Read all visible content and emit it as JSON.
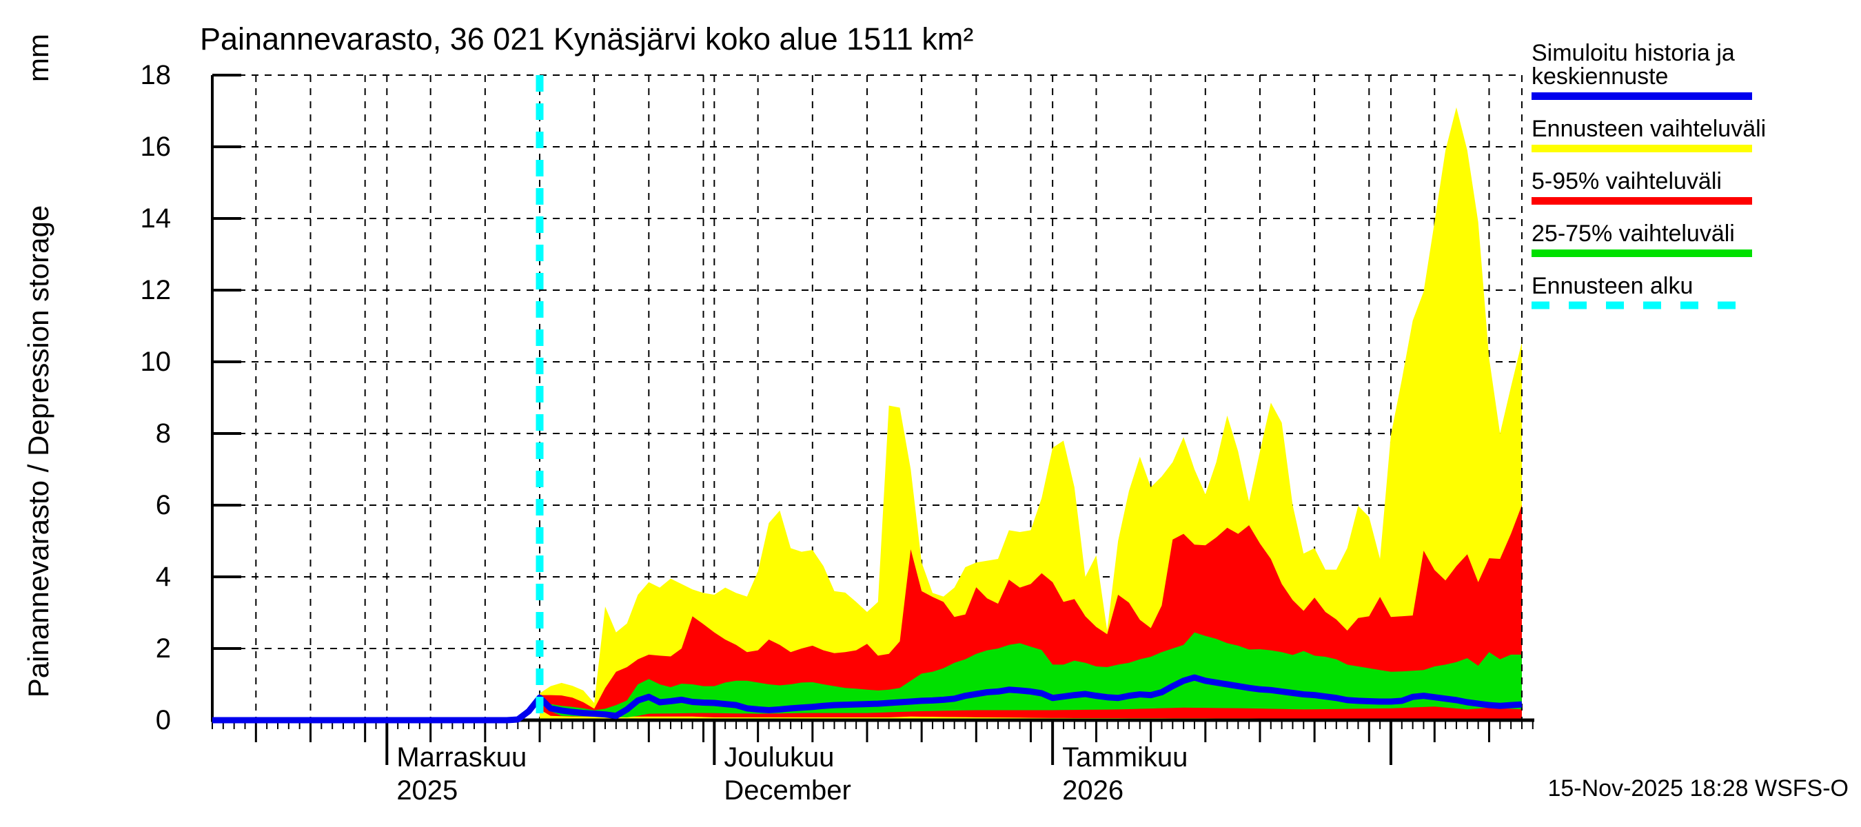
{
  "title": "Painannevarasto, 36 021 Kynäsjärvi koko alue 1511 km²",
  "footer": {
    "timestamp": "15-Nov-2025 18:28 WSFS-O"
  },
  "y_axis": {
    "label": "Painannevarasto / Depression storage",
    "unit": "mm",
    "tick_values": [
      0,
      2,
      4,
      6,
      8,
      10,
      12,
      14,
      16,
      18
    ],
    "ylim": [
      0,
      18
    ]
  },
  "x_axis": {
    "start_date": "2025-10-16",
    "end_date": "2026-02-13",
    "total_days": 120,
    "months": [
      {
        "day": 16,
        "name": "Marraskuu",
        "sub": "2025"
      },
      {
        "day": 46,
        "name": "Joulukuu",
        "sub": "December"
      },
      {
        "day": 77,
        "name": "Tammikuu",
        "sub": "2026"
      },
      {
        "day": 108,
        "name": "",
        "sub": ""
      }
    ],
    "grid_days": [
      4,
      9,
      14,
      16,
      20,
      25,
      30,
      35,
      40,
      45,
      46,
      50,
      55,
      60,
      65,
      70,
      75,
      77,
      81,
      86,
      91,
      96,
      101,
      106,
      108,
      112,
      117,
      120
    ],
    "medium_tick_days": [
      4,
      9,
      14,
      20,
      25,
      30,
      35,
      40,
      45,
      50,
      55,
      60,
      65,
      70,
      75,
      81,
      86,
      91,
      96,
      101,
      106,
      112,
      117
    ]
  },
  "legend": [
    {
      "lines": [
        "Simuloitu historia ja",
        "keskiennuste"
      ],
      "color": "blue",
      "dashed": false
    },
    {
      "lines": [
        "Ennusteen vaihteluväli"
      ],
      "color": "yellow",
      "dashed": false
    },
    {
      "lines": [
        "5-95% vaihteluväli"
      ],
      "color": "red",
      "dashed": false
    },
    {
      "lines": [
        "25-75% vaihteluväli"
      ],
      "color": "green",
      "dashed": false
    },
    {
      "lines": [
        "Ennusteen alku"
      ],
      "color": "cyan",
      "dashed": true
    }
  ],
  "colors": {
    "blue": "#0000ee",
    "yellow": "#ffff00",
    "red": "#ff0000",
    "green": "#00e000",
    "cyan": "#00ffff",
    "axis": "#000000",
    "grid": "#000000"
  },
  "chart_data": {
    "type": "area",
    "title": "Painannevarasto, 36 021 Kynäsjärvi koko alue 1511 km²",
    "xlabel": "",
    "ylabel": "Painannevarasto / Depression storage (mm)",
    "ylim": [
      0,
      18
    ],
    "x_unit": "days since 2025-10-16",
    "forecast_start_day": 30,
    "series": [
      {
        "name": "max (Ennusteen vaihteluväli, top)",
        "color_key": "yellow",
        "start_day": 30,
        "values": [
          0.75,
          0.95,
          1.04,
          0.96,
          0.83,
          0.48,
          3.17,
          2.45,
          2.7,
          3.5,
          3.85,
          3.7,
          3.95,
          3.8,
          3.65,
          3.55,
          3.5,
          3.7,
          3.55,
          3.45,
          4.15,
          5.5,
          5.85,
          4.8,
          4.7,
          4.75,
          4.3,
          3.6,
          3.56,
          3.3,
          3.02,
          3.3,
          8.78,
          8.72,
          7.0,
          4.4,
          3.55,
          3.45,
          3.7,
          4.27,
          4.4,
          4.45,
          4.5,
          5.3,
          5.25,
          5.3,
          6.2,
          7.6,
          7.8,
          6.5,
          4.0,
          4.6,
          2.5,
          5.0,
          6.4,
          7.35,
          6.5,
          6.8,
          7.2,
          7.9,
          7.0,
          6.3,
          7.2,
          8.5,
          7.5,
          6.1,
          7.5,
          8.86,
          8.3,
          6.0,
          4.65,
          4.8,
          4.2,
          4.2,
          4.8,
          5.98,
          5.67,
          4.5,
          7.96,
          9.5,
          11.15,
          11.96,
          13.9,
          15.9,
          17.1,
          15.9,
          13.9,
          10.1,
          8.0,
          9.3,
          10.55
        ]
      },
      {
        "name": "95% (5-95% vaihteluväli, top)",
        "color_key": "red",
        "start_day": 30,
        "values": [
          0.7,
          0.7,
          0.69,
          0.63,
          0.5,
          0.32,
          0.9,
          1.35,
          1.48,
          1.7,
          1.83,
          1.8,
          1.78,
          2.0,
          2.9,
          2.68,
          2.45,
          2.25,
          2.1,
          1.9,
          1.95,
          2.25,
          2.1,
          1.9,
          2.0,
          2.08,
          1.95,
          1.87,
          1.9,
          1.95,
          2.13,
          1.8,
          1.85,
          2.2,
          4.77,
          3.6,
          3.44,
          3.3,
          2.88,
          2.95,
          3.71,
          3.4,
          3.25,
          3.92,
          3.7,
          3.8,
          4.1,
          3.85,
          3.3,
          3.38,
          2.9,
          2.6,
          2.4,
          3.5,
          3.28,
          2.8,
          2.57,
          3.2,
          5.04,
          5.2,
          4.9,
          4.88,
          5.1,
          5.37,
          5.2,
          5.44,
          4.93,
          4.5,
          3.8,
          3.35,
          3.05,
          3.42,
          3.02,
          2.81,
          2.5,
          2.85,
          2.9,
          3.44,
          2.88,
          2.9,
          2.92,
          4.73,
          4.19,
          3.9,
          4.3,
          4.63,
          3.85,
          4.52,
          4.5,
          5.2,
          6.0
        ]
      },
      {
        "name": "75% (25-75% vaihteluväli, top)",
        "color_key": "green",
        "start_day": 30,
        "values": [
          0.66,
          0.45,
          0.4,
          0.37,
          0.33,
          0.28,
          0.32,
          0.42,
          0.55,
          1.0,
          1.15,
          1.0,
          0.92,
          1.02,
          1.0,
          0.95,
          0.95,
          1.05,
          1.1,
          1.1,
          1.05,
          1.0,
          0.97,
          1.0,
          1.05,
          1.06,
          1.0,
          0.95,
          0.9,
          0.88,
          0.85,
          0.83,
          0.85,
          0.9,
          1.1,
          1.3,
          1.35,
          1.45,
          1.6,
          1.7,
          1.85,
          1.95,
          2.0,
          2.1,
          2.15,
          2.05,
          1.96,
          1.55,
          1.55,
          1.66,
          1.6,
          1.5,
          1.48,
          1.55,
          1.6,
          1.7,
          1.77,
          1.9,
          2.0,
          2.1,
          2.45,
          2.35,
          2.27,
          2.15,
          2.08,
          1.97,
          1.98,
          1.95,
          1.9,
          1.82,
          1.93,
          1.8,
          1.77,
          1.7,
          1.55,
          1.5,
          1.45,
          1.4,
          1.35,
          1.36,
          1.38,
          1.4,
          1.5,
          1.55,
          1.62,
          1.73,
          1.52,
          1.9,
          1.7,
          1.83,
          1.83
        ]
      },
      {
        "name": "Simuloitu historia ja keskiennuste",
        "color_key": "blue",
        "start_day": 0,
        "values": [
          0,
          0,
          0,
          0,
          0,
          0,
          0,
          0,
          0,
          0,
          0,
          0,
          0,
          0,
          0,
          0,
          0,
          0,
          0,
          0,
          0,
          0,
          0,
          0,
          0,
          0,
          0,
          0,
          0.02,
          0.25,
          0.63,
          0.33,
          0.27,
          0.23,
          0.2,
          0.18,
          0.16,
          0.12,
          0.3,
          0.55,
          0.65,
          0.5,
          0.53,
          0.57,
          0.51,
          0.49,
          0.48,
          0.45,
          0.42,
          0.33,
          0.3,
          0.28,
          0.3,
          0.33,
          0.35,
          0.37,
          0.4,
          0.42,
          0.43,
          0.44,
          0.45,
          0.46,
          0.48,
          0.5,
          0.52,
          0.54,
          0.55,
          0.57,
          0.6,
          0.68,
          0.73,
          0.78,
          0.8,
          0.85,
          0.83,
          0.8,
          0.75,
          0.62,
          0.66,
          0.7,
          0.73,
          0.68,
          0.64,
          0.62,
          0.68,
          0.72,
          0.7,
          0.78,
          0.95,
          1.1,
          1.19,
          1.1,
          1.05,
          1.0,
          0.95,
          0.9,
          0.86,
          0.84,
          0.8,
          0.76,
          0.72,
          0.7,
          0.66,
          0.62,
          0.56,
          0.54,
          0.53,
          0.52,
          0.52,
          0.54,
          0.65,
          0.68,
          0.64,
          0.6,
          0.56,
          0.5,
          0.46,
          0.42,
          0.4,
          0.42,
          0.44
        ]
      },
      {
        "name": "25% (25-75% vaihteluväli, bottom)",
        "color_key": "green",
        "breakpoints": true,
        "values": [
          [
            30,
            0.55
          ],
          [
            31,
            0.25
          ],
          [
            32,
            0.12
          ],
          [
            35,
            0.1
          ],
          [
            38,
            0.08
          ],
          [
            39,
            0.12
          ],
          [
            40,
            0.18
          ],
          [
            45,
            0.2
          ],
          [
            50,
            0.18
          ],
          [
            55,
            0.2
          ],
          [
            60,
            0.2
          ],
          [
            65,
            0.25
          ],
          [
            70,
            0.28
          ],
          [
            77,
            0.28
          ],
          [
            83,
            0.3
          ],
          [
            89,
            0.35
          ],
          [
            95,
            0.33
          ],
          [
            100,
            0.3
          ],
          [
            108,
            0.33
          ],
          [
            112,
            0.38
          ],
          [
            115,
            0.3
          ],
          [
            117,
            0.35
          ],
          [
            120,
            0.3
          ]
        ]
      },
      {
        "name": "5% (5-95% vaihteluväli, bottom)",
        "color_key": "red",
        "breakpoints": true,
        "values": [
          [
            30,
            0.3
          ],
          [
            31,
            0.12
          ],
          [
            33,
            0.1
          ],
          [
            44,
            0.1
          ],
          [
            46,
            0.08
          ],
          [
            62,
            0.08
          ],
          [
            64,
            0.1
          ],
          [
            70,
            0.08
          ],
          [
            77,
            0.06
          ],
          [
            95,
            0.05
          ],
          [
            108,
            0.04
          ],
          [
            120,
            0.04
          ]
        ]
      },
      {
        "name": "min (Ennusteen vaihteluväli, bottom)",
        "color_key": "yellow",
        "breakpoints": true,
        "values": [
          [
            30,
            0.0
          ],
          [
            120,
            0.0
          ]
        ]
      }
    ]
  }
}
